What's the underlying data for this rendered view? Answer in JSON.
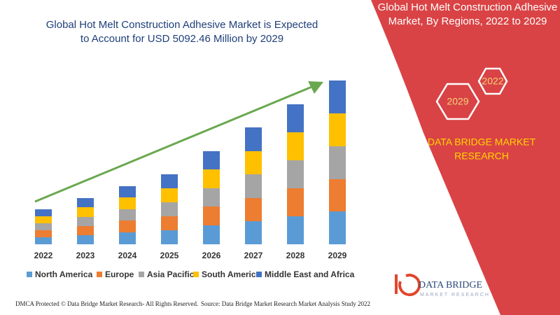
{
  "chart_data": {
    "type": "bar",
    "stacked": true,
    "title": [
      "Global Hot Melt Construction Adhesive Market is Expected",
      "to Account for USD 5092.46 Million by 2029"
    ],
    "categories": [
      "2022",
      "2023",
      "2024",
      "2025",
      "2026",
      "2027",
      "2028",
      "2029"
    ],
    "series": [
      {
        "name": "North America",
        "color": "#5b9bd5",
        "values": [
          10,
          13,
          17,
          20,
          27,
          33,
          40,
          47
        ]
      },
      {
        "name": "Europe",
        "color": "#ed7d31",
        "values": [
          10,
          13,
          17,
          20,
          27,
          33,
          40,
          46
        ]
      },
      {
        "name": "Asia Pacific",
        "color": "#a5a5a5",
        "values": [
          10,
          13,
          16,
          20,
          26,
          34,
          40,
          47
        ]
      },
      {
        "name": "South America",
        "color": "#ffc000",
        "values": [
          10,
          14,
          17,
          20,
          27,
          33,
          40,
          47
        ]
      },
      {
        "name": "Middle East and Africa",
        "color": "#4472c4",
        "values": [
          10,
          13,
          16,
          20,
          26,
          34,
          40,
          47
        ]
      }
    ],
    "ylim": [
      0,
      240
    ]
  },
  "panel": {
    "title": [
      "Global Hot Melt Construction Adhesive",
      "Market, By Regions, 2022 to 2029"
    ],
    "hexagons": [
      "2022",
      "2029"
    ],
    "brand": [
      "DATA BRIDGE MARKET",
      "RESEARCH"
    ]
  },
  "logo": {
    "name": "DATA BRIDGE",
    "tagline": "MARKET RESEARCH"
  },
  "footer": {
    "left": "DMCA Protected © Data Bridge Market Research- All Rights Reserved.",
    "right": "Source: Data Bridge Market Research Market Analysis Study 2022"
  }
}
